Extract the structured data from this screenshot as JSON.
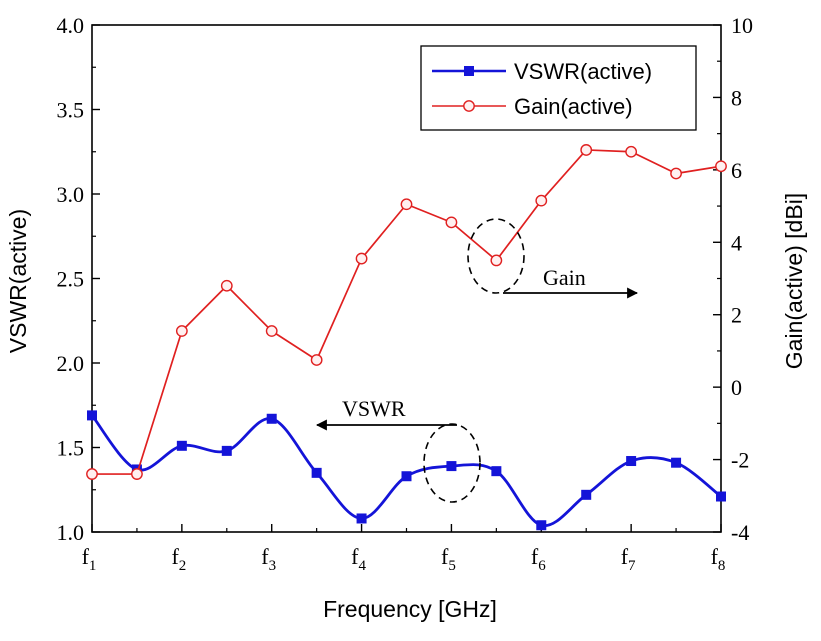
{
  "chart_data": {
    "type": "line",
    "x_label": "Frequency [GHz]",
    "y_left_label": "VSWR(active)",
    "y_right_label": "Gain(active) [dBi]",
    "x_ticks": [
      {
        "base": "f",
        "sub": "1"
      },
      {
        "base": "f",
        "sub": "2"
      },
      {
        "base": "f",
        "sub": "3"
      },
      {
        "base": "f",
        "sub": "4"
      },
      {
        "base": "f",
        "sub": "5"
      },
      {
        "base": "f",
        "sub": "6"
      },
      {
        "base": "f",
        "sub": "7"
      },
      {
        "base": "f",
        "sub": "8"
      }
    ],
    "x_range": [
      1,
      8
    ],
    "y_left": {
      "min": 1.0,
      "max": 4.0,
      "ticks": [
        "1.0",
        "1.5",
        "2.0",
        "2.5",
        "3.0",
        "3.5",
        "4.0"
      ]
    },
    "y_right": {
      "min": -4,
      "max": 10,
      "ticks": [
        "-4",
        "-2",
        "0",
        "2",
        "4",
        "6",
        "8",
        "10"
      ]
    },
    "legend": {
      "position": "top-right"
    },
    "series": [
      {
        "name": "VSWR(active)",
        "axis": "left",
        "color": "#1414d8",
        "marker": "square",
        "smooth": true,
        "x": [
          1.0,
          1.5,
          2.0,
          2.5,
          3.0,
          3.5,
          4.0,
          4.5,
          5.0,
          5.5,
          6.0,
          6.5,
          7.0,
          7.5,
          8.0
        ],
        "y": [
          1.69,
          1.37,
          1.51,
          1.48,
          1.67,
          1.35,
          1.08,
          1.33,
          1.39,
          1.36,
          1.04,
          1.22,
          1.42,
          1.41,
          1.21
        ]
      },
      {
        "name": "Gain(active)",
        "axis": "right",
        "color": "#e02020",
        "marker": "circle",
        "smooth": false,
        "x": [
          1.0,
          1.5,
          2.0,
          2.5,
          3.0,
          3.5,
          4.0,
          4.5,
          5.0,
          5.5,
          6.0,
          6.5,
          7.0,
          7.5,
          8.0
        ],
        "y": [
          -2.4,
          -2.4,
          1.55,
          2.8,
          1.55,
          0.75,
          3.55,
          5.05,
          4.55,
          3.5,
          5.15,
          6.55,
          6.5,
          5.9,
          6.1
        ]
      }
    ],
    "annotations": [
      {
        "text": "Gain",
        "direction": "right",
        "x": 5.5,
        "target": "Gain(active)"
      },
      {
        "text": "VSWR",
        "direction": "left",
        "x": 5.0,
        "target": "VSWR(active)"
      }
    ]
  }
}
